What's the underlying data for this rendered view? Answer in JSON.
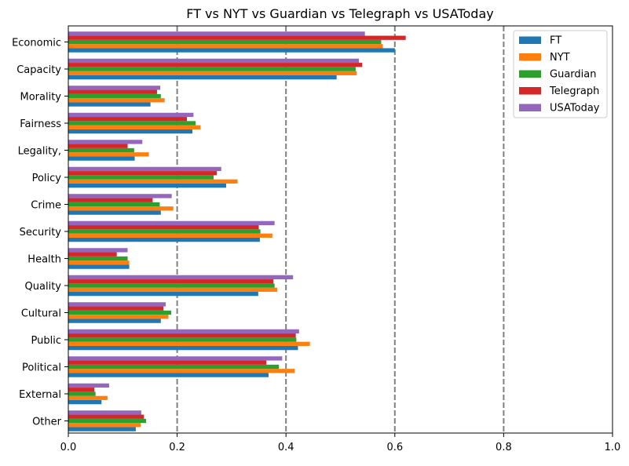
{
  "chart_data": {
    "type": "bar",
    "orientation": "horizontal",
    "title": "FT vs NYT vs Guardian vs Telegraph vs USAToday",
    "xlabel": "",
    "ylabel": "",
    "xlim": [
      0,
      1.0
    ],
    "x_ticks": [
      "0.0",
      "0.2",
      "0.4",
      "0.6",
      "0.8",
      "1.0"
    ],
    "grid": "vertical dashed at 0.2, 0.4, 0.6, 0.8",
    "legend_position": "top-right",
    "categories": [
      "Economic",
      "Capacity",
      "Morality",
      "Fairness",
      "Legality,",
      "Policy",
      "Crime",
      "Security",
      "Health",
      "Quality",
      "Cultural",
      "Public",
      "Political",
      "External",
      "Other"
    ],
    "series": [
      {
        "name": "FT",
        "color": "#1f77b4",
        "values": [
          0.6,
          0.493,
          0.151,
          0.228,
          0.122,
          0.29,
          0.17,
          0.352,
          0.112,
          0.349,
          0.17,
          0.422,
          0.368,
          0.061,
          0.124
        ]
      },
      {
        "name": "NYT",
        "color": "#ff7f0e",
        "values": [
          0.578,
          0.53,
          0.177,
          0.243,
          0.148,
          0.311,
          0.193,
          0.375,
          0.112,
          0.384,
          0.184,
          0.444,
          0.416,
          0.072,
          0.133
        ]
      },
      {
        "name": "Guardian",
        "color": "#2ca02c",
        "values": [
          0.575,
          0.528,
          0.17,
          0.234,
          0.121,
          0.267,
          0.168,
          0.353,
          0.109,
          0.379,
          0.189,
          0.419,
          0.387,
          0.05,
          0.143
        ]
      },
      {
        "name": "Telegraph",
        "color": "#d62728",
        "values": [
          0.62,
          0.54,
          0.163,
          0.218,
          0.109,
          0.273,
          0.155,
          0.35,
          0.089,
          0.377,
          0.175,
          0.418,
          0.364,
          0.048,
          0.139
        ]
      },
      {
        "name": "USAToday",
        "color": "#9467bd",
        "values": [
          0.545,
          0.534,
          0.169,
          0.23,
          0.136,
          0.281,
          0.19,
          0.379,
          0.109,
          0.413,
          0.179,
          0.424,
          0.393,
          0.075,
          0.134
        ]
      }
    ]
  }
}
